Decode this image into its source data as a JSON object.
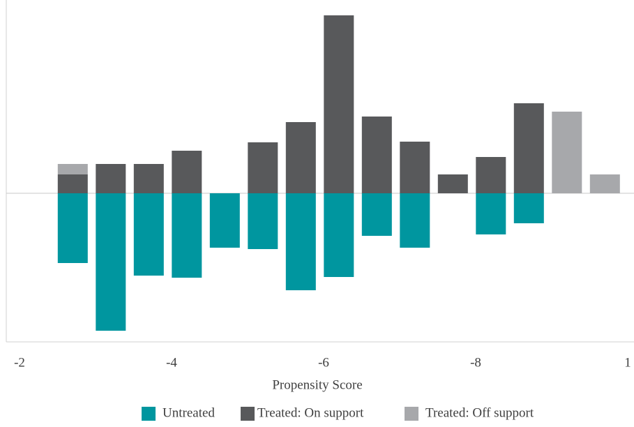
{
  "chart_data": {
    "type": "bar",
    "x_label": "Propensity Score",
    "x": [
      0.27,
      0.32,
      0.37,
      0.42,
      0.47,
      0.52,
      0.57,
      0.62,
      0.67,
      0.72,
      0.77,
      0.82,
      0.87,
      0.92,
      0.97
    ],
    "xlim": [
      0.2,
      1
    ],
    "xticks": [
      {
        "value": 0.2,
        "label": "-2"
      },
      {
        "value": 0.4,
        "label": "-4"
      },
      {
        "value": 0.6,
        "label": "-6"
      },
      {
        "value": 0.8,
        "label": "-8"
      },
      1
    ],
    "ylim": [
      -21.3,
      26.7
    ],
    "stacked": true,
    "series": [
      {
        "name": "Untreated",
        "color": "#00969f",
        "values": [
          -10,
          -19.7,
          -11.8,
          -12.1,
          -7.8,
          -8,
          -13.9,
          -12,
          -6.1,
          -7.8,
          0,
          -5.9,
          -4.3,
          0,
          0
        ]
      },
      {
        "name": "Treated: On support",
        "color": "#58595b",
        "values": [
          2.7,
          4.2,
          4.2,
          6.1,
          0,
          7.3,
          10.2,
          25.5,
          11,
          7.4,
          2.7,
          5.2,
          12.9,
          0,
          0
        ]
      },
      {
        "name": "Treated: Off support",
        "color": "#a7a8ab",
        "values": [
          1.5,
          0,
          0,
          0,
          0,
          0,
          0,
          0,
          0,
          0,
          0,
          0,
          0,
          11.7,
          2.7
        ]
      }
    ]
  }
}
